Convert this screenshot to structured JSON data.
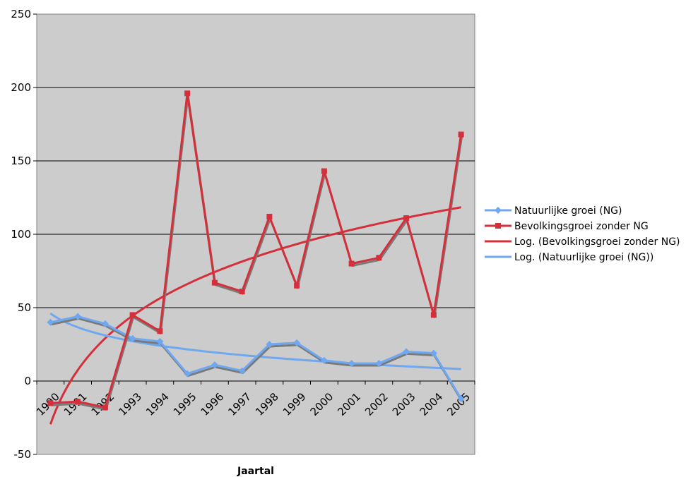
{
  "chart_data": {
    "type": "line",
    "xlabel": "Jaartal",
    "ylabel": "",
    "ylim": [
      -50,
      250
    ],
    "yticks": [
      -50,
      0,
      50,
      100,
      150,
      200,
      250
    ],
    "categories": [
      "1990",
      "1991",
      "1992",
      "1993",
      "1994",
      "1995",
      "1996",
      "1997",
      "1998",
      "1999",
      "2000",
      "2001",
      "2002",
      "2003",
      "2004",
      "2005"
    ],
    "grid": "horizontal",
    "legend_position": "right",
    "series": [
      {
        "name": "Natuurlijke groei (NG)",
        "color": "#6fa8f0",
        "marker": "diamond",
        "values": [
          40,
          44,
          39,
          29,
          27,
          5,
          11,
          7,
          25,
          26,
          14,
          12,
          12,
          20,
          19,
          -12
        ]
      },
      {
        "name": "Bevolkingsgroei zonder NG",
        "color": "#d42f3a",
        "marker": "square",
        "values": [
          -15,
          -14,
          -18,
          45,
          34,
          196,
          67,
          61,
          112,
          65,
          143,
          80,
          84,
          111,
          45,
          168
        ]
      }
    ],
    "trendlines": [
      {
        "name": "Log. (Bevolkingsgroei zonder NG)",
        "color": "#d42f3a",
        "type": "logarithmic",
        "of": "Bevolkingsgroei zonder NG"
      },
      {
        "name": "Log. (Natuurlijke groei (NG))",
        "color": "#6fa8f0",
        "type": "logarithmic",
        "of": "Natuurlijke groei (NG)"
      }
    ]
  }
}
